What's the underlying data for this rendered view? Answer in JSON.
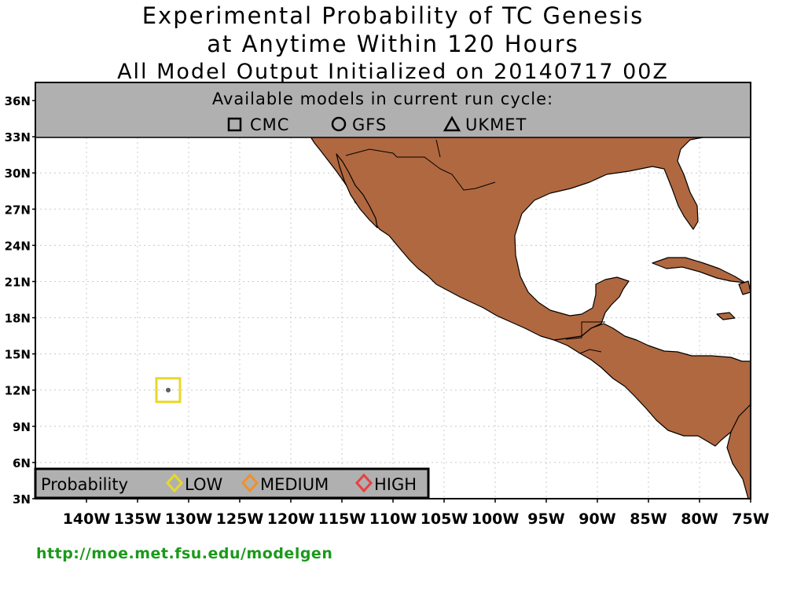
{
  "title": {
    "line1": "Experimental Probability of TC Genesis",
    "line2": "at Anytime Within 120 Hours",
    "line3": "All Model Output Initialized on 20140717 00Z"
  },
  "models_box": {
    "heading": "Available models in current run cycle:",
    "models": [
      {
        "symbol": "square-icon",
        "label": "CMC"
      },
      {
        "symbol": "circle-icon",
        "label": "GFS"
      },
      {
        "symbol": "triangle-icon",
        "label": "UKMET"
      }
    ]
  },
  "legend": {
    "title": "Probability",
    "items": [
      {
        "label": "LOW",
        "color": "#e8d82a"
      },
      {
        "label": "MEDIUM",
        "color": "#f0902a"
      },
      {
        "label": "HIGH",
        "color": "#e84040"
      }
    ]
  },
  "axes": {
    "lat_labels": [
      "36N",
      "33N",
      "30N",
      "27N",
      "24N",
      "21N",
      "18N",
      "15N",
      "12N",
      "9N",
      "6N",
      "3N"
    ],
    "lon_labels": [
      "140W",
      "135W",
      "130W",
      "125W",
      "120W",
      "115W",
      "110W",
      "105W",
      "100W",
      "95W",
      "90W",
      "85W",
      "80W",
      "75W"
    ]
  },
  "genesis_marker": {
    "model": "CMC",
    "probability": "LOW",
    "lat": 12,
    "lon": -132
  },
  "colors": {
    "land": "#b06840",
    "header_bg": "#b0b0b0",
    "grid": "#c8c8c8",
    "url": "#1a9a1a"
  },
  "footer": {
    "url": "http://moe.met.fsu.edu/modelgen"
  }
}
